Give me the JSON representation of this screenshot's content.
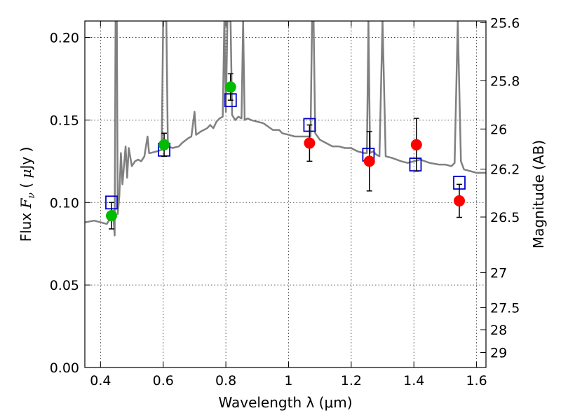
{
  "chart_data": {
    "type": "scatter",
    "xlabel": "Wavelength  λ (μm)",
    "ylabel": "Flux  F_ν  ( μJy )",
    "ylabel_parts": {
      "a": "Flux ",
      "b": "F",
      "c": "ν",
      "d": "  ( ",
      "e": "μ",
      "f": "Jy )"
    },
    "y2label": "Magnitude (AB)",
    "xlim": [
      0.35,
      1.63
    ],
    "ylim": [
      0.0,
      0.21
    ],
    "grid": true,
    "x_ticks": [
      0.4,
      0.6,
      0.8,
      1.0,
      1.2,
      1.4,
      1.6
    ],
    "x_tick_labels": [
      "0.4",
      "0.6",
      "0.8",
      "1",
      "1.2",
      "1.4",
      "1.6"
    ],
    "y_ticks": [
      0.0,
      0.05,
      0.1,
      0.15,
      0.2
    ],
    "y_tick_labels": [
      "0.00",
      "0.05",
      "0.10",
      "0.15",
      "0.20"
    ],
    "mag_ticks": [
      {
        "mag": 25.6,
        "label": "25.6"
      },
      {
        "mag": 25.8,
        "label": "25.8"
      },
      {
        "mag": 26.0,
        "label": "26"
      },
      {
        "mag": 26.2,
        "label": "26.2"
      },
      {
        "mag": 26.5,
        "label": "26.5"
      },
      {
        "mag": 27.0,
        "label": "27"
      },
      {
        "mag": 27.5,
        "label": "27.5"
      },
      {
        "mag": 28.0,
        "label": "28"
      },
      {
        "mag": 29.0,
        "label": "29"
      }
    ],
    "series": [
      {
        "kind": "model_spectrum",
        "color": "#808080",
        "points": [
          [
            0.35,
            0.088
          ],
          [
            0.38,
            0.089
          ],
          [
            0.4,
            0.088
          ],
          [
            0.42,
            0.087
          ],
          [
            0.43,
            0.09
          ],
          [
            0.435,
            0.092
          ],
          [
            0.44,
            0.095
          ],
          [
            0.445,
            0.08
          ],
          [
            0.448,
            0.21
          ],
          [
            0.452,
            0.21
          ],
          [
            0.455,
            0.093
          ],
          [
            0.46,
            0.104
          ],
          [
            0.465,
            0.13
          ],
          [
            0.47,
            0.111
          ],
          [
            0.48,
            0.134
          ],
          [
            0.485,
            0.115
          ],
          [
            0.49,
            0.133
          ],
          [
            0.5,
            0.122
          ],
          [
            0.51,
            0.125
          ],
          [
            0.52,
            0.126
          ],
          [
            0.53,
            0.125
          ],
          [
            0.54,
            0.128
          ],
          [
            0.55,
            0.14
          ],
          [
            0.555,
            0.13
          ],
          [
            0.56,
            0.13
          ],
          [
            0.58,
            0.131
          ],
          [
            0.595,
            0.132
          ],
          [
            0.6,
            0.21
          ],
          [
            0.61,
            0.21
          ],
          [
            0.615,
            0.134
          ],
          [
            0.63,
            0.133
          ],
          [
            0.65,
            0.134
          ],
          [
            0.66,
            0.136
          ],
          [
            0.68,
            0.139
          ],
          [
            0.69,
            0.14
          ],
          [
            0.7,
            0.155
          ],
          [
            0.705,
            0.141
          ],
          [
            0.72,
            0.143
          ],
          [
            0.74,
            0.145
          ],
          [
            0.75,
            0.147
          ],
          [
            0.76,
            0.145
          ],
          [
            0.77,
            0.149
          ],
          [
            0.78,
            0.151
          ],
          [
            0.79,
            0.152
          ],
          [
            0.795,
            0.21
          ],
          [
            0.8,
            0.155
          ],
          [
            0.805,
            0.21
          ],
          [
            0.815,
            0.21
          ],
          [
            0.82,
            0.153
          ],
          [
            0.83,
            0.15
          ],
          [
            0.84,
            0.152
          ],
          [
            0.85,
            0.151
          ],
          [
            0.855,
            0.21
          ],
          [
            0.86,
            0.15
          ],
          [
            0.87,
            0.151
          ],
          [
            0.88,
            0.15
          ],
          [
            0.9,
            0.149
          ],
          [
            0.92,
            0.148
          ],
          [
            0.95,
            0.144
          ],
          [
            0.97,
            0.144
          ],
          [
            0.98,
            0.142
          ],
          [
            1.0,
            0.141
          ],
          [
            1.02,
            0.14
          ],
          [
            1.04,
            0.14
          ],
          [
            1.06,
            0.14
          ],
          [
            1.07,
            0.14
          ],
          [
            1.075,
            0.21
          ],
          [
            1.08,
            0.21
          ],
          [
            1.085,
            0.142
          ],
          [
            1.1,
            0.138
          ],
          [
            1.12,
            0.136
          ],
          [
            1.14,
            0.134
          ],
          [
            1.16,
            0.134
          ],
          [
            1.18,
            0.133
          ],
          [
            1.2,
            0.133
          ],
          [
            1.22,
            0.131
          ],
          [
            1.24,
            0.13
          ],
          [
            1.25,
            0.13
          ],
          [
            1.255,
            0.21
          ],
          [
            1.26,
            0.13
          ],
          [
            1.27,
            0.131
          ],
          [
            1.28,
            0.129
          ],
          [
            1.29,
            0.128
          ],
          [
            1.3,
            0.21
          ],
          [
            1.31,
            0.128
          ],
          [
            1.33,
            0.127
          ],
          [
            1.36,
            0.125
          ],
          [
            1.38,
            0.124
          ],
          [
            1.4,
            0.125
          ],
          [
            1.42,
            0.126
          ],
          [
            1.45,
            0.124
          ],
          [
            1.48,
            0.123
          ],
          [
            1.5,
            0.123
          ],
          [
            1.52,
            0.122
          ],
          [
            1.53,
            0.124
          ],
          [
            1.54,
            0.21
          ],
          [
            1.55,
            0.125
          ],
          [
            1.56,
            0.12
          ],
          [
            1.58,
            0.119
          ],
          [
            1.6,
            0.118
          ],
          [
            1.63,
            0.118
          ]
        ]
      },
      {
        "kind": "synthetic_photometry",
        "color": "#0000cc",
        "marker": "open-square",
        "points": [
          [
            0.435,
            0.1
          ],
          [
            0.603,
            0.132
          ],
          [
            0.815,
            0.162
          ],
          [
            1.067,
            0.147
          ],
          [
            1.255,
            0.129
          ],
          [
            1.405,
            0.123
          ],
          [
            1.545,
            0.112
          ]
        ]
      },
      {
        "kind": "observed_green",
        "color": "#00bb00",
        "marker": "filled-circle",
        "points": [
          {
            "x": 0.435,
            "y": 0.092,
            "err": 0.008
          },
          {
            "x": 0.603,
            "y": 0.135,
            "err": 0.007
          },
          {
            "x": 0.815,
            "y": 0.17,
            "err": 0.008
          }
        ]
      },
      {
        "kind": "observed_red",
        "color": "#ff0000",
        "marker": "filled-circle",
        "points": [
          {
            "x": 1.067,
            "y": 0.136,
            "err": 0.011
          },
          {
            "x": 1.258,
            "y": 0.125,
            "err": 0.018
          },
          {
            "x": 1.408,
            "y": 0.135,
            "err": 0.016
          },
          {
            "x": 1.545,
            "y": 0.101,
            "err": 0.01
          }
        ]
      }
    ]
  }
}
